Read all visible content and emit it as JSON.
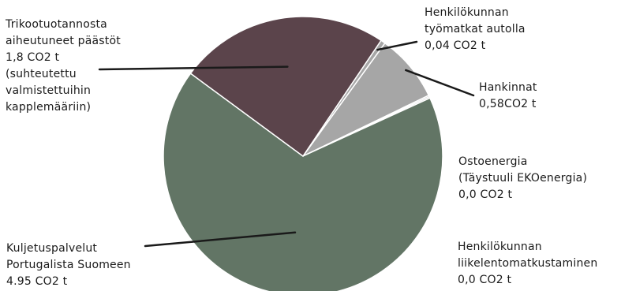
{
  "chart_data": {
    "type": "pie",
    "title": "",
    "slices": [
      {
        "label": [
          "Henkilökunnan",
          "työmatkat autolla",
          "0,04 CO2 t"
        ],
        "value": 0.04,
        "color": "#a6a6a6"
      },
      {
        "label": [
          "Hankinnat",
          "0,58CO2 t"
        ],
        "value": 0.58,
        "color": "#a6a6a6"
      },
      {
        "label": [
          "Ostoenergia",
          "(Täystuuli EKOenergia)",
          "0,0 CO2 t"
        ],
        "value": 0.0,
        "color": "#a6a6a6"
      },
      {
        "label": [
          "Henkilökunnan",
          "liikelentomatkustaminen",
          "0,0 CO2 t"
        ],
        "value": 0.0,
        "color": "#a6a6a6"
      },
      {
        "label": [
          "Kuljetuspalvelut",
          "Portugalista Suomeen",
          "4.95 CO2 t"
        ],
        "value": 4.95,
        "color": "#627565"
      },
      {
        "label": [
          "Trikootuotannosta",
          "aiheutuneet päästöt",
          "1,8 CO2 t",
          "(suhteutettu",
          "valmistettuihin",
          "kapplemääriin)"
        ],
        "value": 1.8,
        "color": "#5b444b"
      }
    ]
  }
}
